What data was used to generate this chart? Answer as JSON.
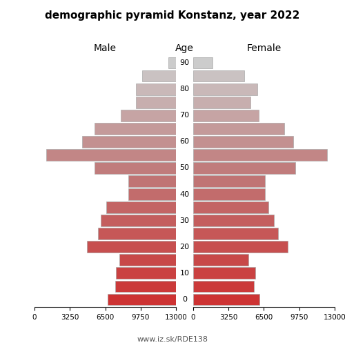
{
  "title": "demographic pyramid Konstanz, year 2022",
  "male_label": "Male",
  "female_label": "Female",
  "age_label": "Age",
  "footer": "www.iz.sk/RDE138",
  "age_groups": [
    0,
    5,
    10,
    15,
    20,
    25,
    30,
    35,
    40,
    45,
    50,
    55,
    60,
    65,
    70,
    75,
    80,
    85,
    90
  ],
  "male_values": [
    6300,
    5600,
    5500,
    5200,
    8200,
    7200,
    6900,
    6400,
    4400,
    4400,
    7500,
    11900,
    8600,
    7500,
    5100,
    3700,
    3700,
    3100,
    700
  ],
  "female_values": [
    6100,
    5600,
    5700,
    5100,
    8700,
    7800,
    7400,
    6900,
    6600,
    6600,
    9400,
    12300,
    9200,
    8400,
    6000,
    5300,
    5900,
    4700,
    1800
  ],
  "xlim": 13000,
  "xticks": [
    0,
    3250,
    6500,
    9750,
    13000
  ],
  "background_color": "#ffffff",
  "bar_edgecolor": "#aaaaaa",
  "bar_linewidth": 0.5,
  "bar_height": 0.85
}
